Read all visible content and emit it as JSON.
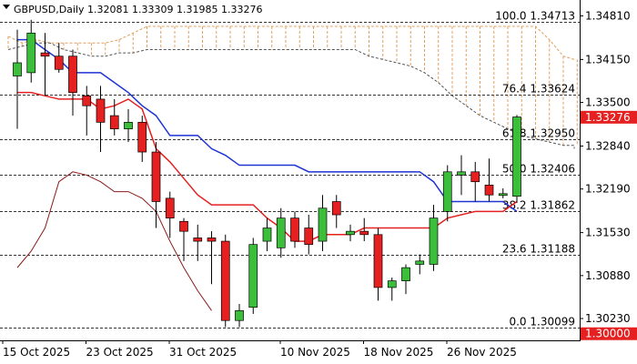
{
  "chart_data": {
    "type": "candlestick",
    "symbol": "GBPUSD",
    "timeframe": "Daily",
    "title": "GBPUSD,Daily",
    "ohlc_header": "1.32081 1.33309 1.31985 1.33276",
    "ylim": [
      1.299,
      1.3505
    ],
    "y_ticks": [
      "1.34810",
      "1.34150",
      "1.33500",
      "1.32840",
      "1.32190",
      "1.31530",
      "1.30880",
      "1.30230"
    ],
    "x_tick_labels": [
      "15 Oct 2025",
      "23 Oct 2025",
      "31 Oct 2025",
      "10 Nov 2025",
      "18 Nov 2025",
      "26 Nov 2025"
    ],
    "x_tick_index": [
      0,
      6,
      12,
      20,
      26,
      32
    ],
    "current_price": "1.33276",
    "bottom_price": "1.30000",
    "fib_levels": [
      {
        "label": "100.0",
        "value": "1.34713",
        "price": 1.34713
      },
      {
        "label": "76.4",
        "value": "1.33624",
        "price": 1.33624
      },
      {
        "label": "61.8",
        "value": "1.32950",
        "price": 1.3295
      },
      {
        "label": "50.0",
        "value": "1.32406",
        "price": 1.32406
      },
      {
        "label": "38.2",
        "value": "1.31862",
        "price": 1.31862
      },
      {
        "label": "23.6",
        "value": "1.31188",
        "price": 1.31188
      },
      {
        "label": "0.0",
        "value": "1.30099",
        "price": 1.30099
      }
    ],
    "candles": [
      {
        "o": 1.339,
        "h": 1.346,
        "l": 1.331,
        "c": 1.341
      },
      {
        "o": 1.3395,
        "h": 1.3475,
        "l": 1.338,
        "c": 1.3455
      },
      {
        "o": 1.3425,
        "h": 1.3455,
        "l": 1.336,
        "c": 1.342
      },
      {
        "o": 1.342,
        "h": 1.344,
        "l": 1.3395,
        "c": 1.34
      },
      {
        "o": 1.342,
        "h": 1.343,
        "l": 1.333,
        "c": 1.3365
      },
      {
        "o": 1.336,
        "h": 1.3375,
        "l": 1.33,
        "c": 1.3345
      },
      {
        "o": 1.3355,
        "h": 1.3375,
        "l": 1.3275,
        "c": 1.332
      },
      {
        "o": 1.333,
        "h": 1.3355,
        "l": 1.33,
        "c": 1.331
      },
      {
        "o": 1.331,
        "h": 1.334,
        "l": 1.329,
        "c": 1.332
      },
      {
        "o": 1.332,
        "h": 1.333,
        "l": 1.326,
        "c": 1.3275
      },
      {
        "o": 1.3275,
        "h": 1.329,
        "l": 1.316,
        "c": 1.32
      },
      {
        "o": 1.3205,
        "h": 1.3215,
        "l": 1.3145,
        "c": 1.3175
      },
      {
        "o": 1.317,
        "h": 1.3175,
        "l": 1.311,
        "c": 1.3155
      },
      {
        "o": 1.3145,
        "h": 1.3165,
        "l": 1.311,
        "c": 1.314
      },
      {
        "o": 1.3145,
        "h": 1.3155,
        "l": 1.3075,
        "c": 1.314
      },
      {
        "o": 1.314,
        "h": 1.315,
        "l": 1.301,
        "c": 1.302
      },
      {
        "o": 1.302,
        "h": 1.3045,
        "l": 1.301,
        "c": 1.3035
      },
      {
        "o": 1.304,
        "h": 1.3145,
        "l": 1.303,
        "c": 1.3135
      },
      {
        "o": 1.314,
        "h": 1.3175,
        "l": 1.3125,
        "c": 1.316
      },
      {
        "o": 1.313,
        "h": 1.319,
        "l": 1.3115,
        "c": 1.3175
      },
      {
        "o": 1.3175,
        "h": 1.3185,
        "l": 1.313,
        "c": 1.314
      },
      {
        "o": 1.316,
        "h": 1.318,
        "l": 1.312,
        "c": 1.3135
      },
      {
        "o": 1.314,
        "h": 1.321,
        "l": 1.3125,
        "c": 1.319
      },
      {
        "o": 1.32,
        "h": 1.321,
        "l": 1.316,
        "c": 1.318
      },
      {
        "o": 1.315,
        "h": 1.3165,
        "l": 1.314,
        "c": 1.3155
      },
      {
        "o": 1.3155,
        "h": 1.3175,
        "l": 1.314,
        "c": 1.315
      },
      {
        "o": 1.315,
        "h": 1.316,
        "l": 1.305,
        "c": 1.307
      },
      {
        "o": 1.307,
        "h": 1.3085,
        "l": 1.305,
        "c": 1.308
      },
      {
        "o": 1.308,
        "h": 1.3105,
        "l": 1.306,
        "c": 1.31
      },
      {
        "o": 1.3105,
        "h": 1.312,
        "l": 1.309,
        "c": 1.311
      },
      {
        "o": 1.3105,
        "h": 1.3195,
        "l": 1.3095,
        "c": 1.3175
      },
      {
        "o": 1.3185,
        "h": 1.3255,
        "l": 1.317,
        "c": 1.3245
      },
      {
        "o": 1.324,
        "h": 1.327,
        "l": 1.321,
        "c": 1.3245
      },
      {
        "o": 1.3245,
        "h": 1.326,
        "l": 1.32,
        "c": 1.323
      },
      {
        "o": 1.3225,
        "h": 1.3265,
        "l": 1.32,
        "c": 1.321
      },
      {
        "o": 1.321,
        "h": 1.322,
        "l": 1.3205,
        "c": 1.3212
      },
      {
        "o": 1.3208,
        "h": 1.3331,
        "l": 1.3198,
        "c": 1.3328
      }
    ],
    "kijun_sen": [
      1.3445,
      1.3445,
      1.343,
      1.3415,
      1.3395,
      1.3395,
      1.3395,
      1.338,
      1.3365,
      1.3345,
      1.333,
      1.33,
      1.33,
      1.33,
      1.328,
      1.327,
      1.3255,
      1.3255,
      1.3255,
      1.3255,
      1.3255,
      1.3245,
      1.3245,
      1.3245,
      1.3245,
      1.3245,
      1.3245,
      1.3245,
      1.3245,
      1.3245,
      1.323,
      1.32,
      1.32,
      1.32,
      1.32,
      1.32,
      1.3185
    ],
    "tenkan_sen": [
      1.3365,
      1.3365,
      1.336,
      1.3355,
      1.3355,
      1.3355,
      1.334,
      1.3345,
      1.3355,
      1.334,
      1.328,
      1.326,
      1.3235,
      1.321,
      1.3195,
      1.3195,
      1.3195,
      1.3195,
      1.3175,
      1.316,
      1.314,
      1.314,
      1.315,
      1.315,
      1.315,
      1.316,
      1.316,
      1.316,
      1.316,
      1.316,
      1.316,
      1.3175,
      1.318,
      1.3185,
      1.3185,
      1.3185,
      1.32
    ],
    "chikou_span": [
      1.31,
      1.3125,
      1.316,
      1.323,
      1.3245,
      1.324,
      1.323,
      1.3215,
      1.3215,
      1.3205,
      1.3185,
      1.314,
      1.31,
      1.3065,
      1.3035
    ],
    "kumo_upper": [
      1.345,
      1.344,
      1.3445,
      1.344,
      1.344,
      1.344,
      1.344,
      1.344,
      1.3445,
      1.3455,
      1.3465,
      1.3465,
      1.3465,
      1.3465,
      1.3465,
      1.3465,
      1.3465,
      1.3465,
      1.3465,
      1.3465,
      1.3465,
      1.3465,
      1.3465,
      1.3465,
      1.3465,
      1.3465,
      1.3465,
      1.3465,
      1.3465,
      1.3465,
      1.3465,
      1.3465,
      1.3465,
      1.3465,
      1.3465,
      1.3465,
      1.3465,
      1.3465,
      1.3465,
      1.3445,
      1.342,
      1.3415,
      1.3415,
      1.3415
    ],
    "kumo_lower": [
      1.343,
      1.3435,
      1.344,
      1.344,
      1.343,
      1.3425,
      1.342,
      1.342,
      1.3425,
      1.3425,
      1.343,
      1.343,
      1.343,
      1.343,
      1.343,
      1.343,
      1.343,
      1.343,
      1.343,
      1.343,
      1.343,
      1.343,
      1.343,
      1.343,
      1.343,
      1.343,
      1.342,
      1.3415,
      1.341,
      1.3405,
      1.3395,
      1.338,
      1.336,
      1.3345,
      1.333,
      1.332,
      1.331,
      1.33,
      1.3295,
      1.329,
      1.3285,
      1.3285,
      1.328,
      1.328
    ]
  },
  "colors": {
    "bull": "#3bbf3b",
    "bear": "#e52020",
    "kijun": "#1f34d4",
    "tenkan": "#e52020",
    "chikou": "#8b1a1a",
    "kumo": "#e0a060",
    "fib": "#333333",
    "current_price_bg": "#e52020",
    "bottom_price_bg": "#e52020"
  }
}
